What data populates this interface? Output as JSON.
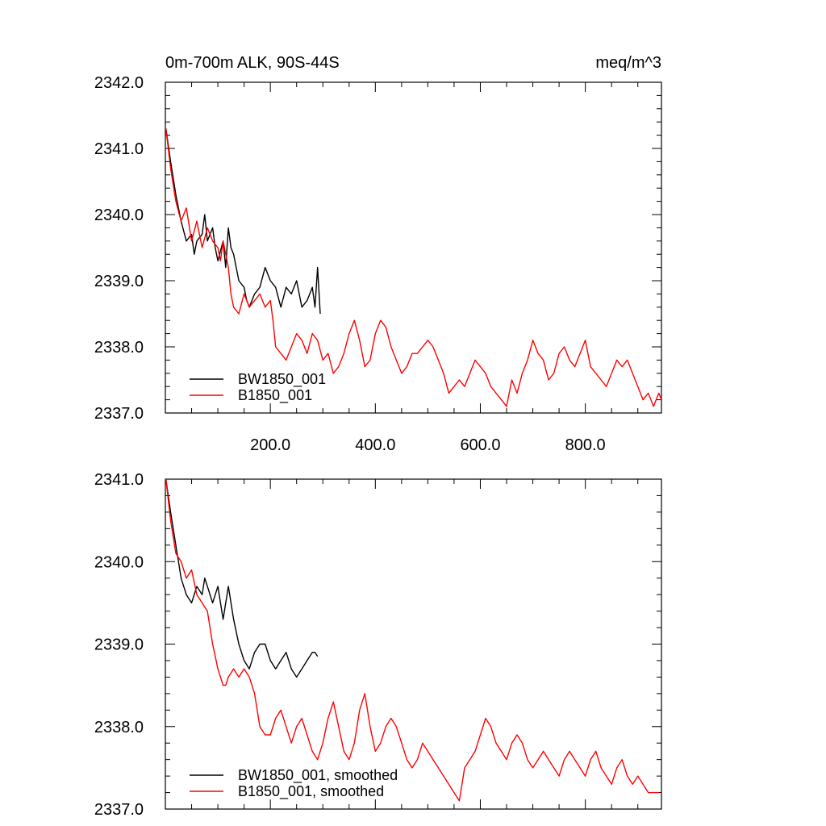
{
  "chart_data": [
    {
      "type": "line",
      "title_left": "0m-700m ALK, 90S-44S",
      "title_right": "meq/m^3",
      "xlabel": "",
      "ylabel": "",
      "xlim": [
        0,
        945
      ],
      "ylim": [
        2337.0,
        2342.0
      ],
      "x_ticks": [
        200,
        400,
        600,
        800
      ],
      "x_tick_labels": [
        "200.0",
        "400.0",
        "600.0",
        "800.0"
      ],
      "y_ticks": [
        2337,
        2338,
        2339,
        2340,
        2341,
        2342
      ],
      "y_tick_labels": [
        "2337.0",
        "2338.0",
        "2339.0",
        "2340.0",
        "2341.0",
        "2342.0"
      ],
      "legend_position": "bottom-left",
      "series": [
        {
          "name": "BW1850_001",
          "color": "#000000",
          "x": [
            1,
            10,
            20,
            30,
            40,
            50,
            55,
            60,
            70,
            75,
            80,
            90,
            95,
            100,
            110,
            115,
            120,
            125,
            130,
            140,
            150,
            155,
            160,
            170,
            180,
            190,
            200,
            210,
            220,
            230,
            240,
            250,
            260,
            270,
            280,
            285,
            290,
            295
          ],
          "y": [
            2341.3,
            2340.8,
            2340.3,
            2339.9,
            2339.6,
            2339.7,
            2339.4,
            2339.6,
            2339.7,
            2340.0,
            2339.6,
            2339.8,
            2339.5,
            2339.3,
            2339.6,
            2339.2,
            2339.8,
            2339.5,
            2339.4,
            2339.0,
            2338.9,
            2338.7,
            2338.6,
            2338.8,
            2338.9,
            2339.2,
            2339.0,
            2338.9,
            2338.6,
            2338.9,
            2338.8,
            2339.0,
            2338.6,
            2338.7,
            2338.9,
            2338.6,
            2339.2,
            2338.5
          ]
        },
        {
          "name": "B1850_001",
          "color": "#ff0000",
          "x": [
            1,
            10,
            20,
            30,
            40,
            50,
            60,
            70,
            80,
            90,
            100,
            105,
            110,
            120,
            125,
            130,
            140,
            150,
            160,
            170,
            180,
            190,
            200,
            205,
            210,
            220,
            230,
            240,
            250,
            260,
            270,
            280,
            290,
            300,
            310,
            320,
            330,
            340,
            350,
            360,
            370,
            380,
            390,
            400,
            410,
            420,
            430,
            440,
            450,
            460,
            470,
            480,
            490,
            500,
            510,
            520,
            530,
            540,
            550,
            560,
            570,
            580,
            590,
            600,
            610,
            620,
            630,
            640,
            650,
            660,
            670,
            680,
            690,
            700,
            710,
            720,
            730,
            740,
            750,
            760,
            770,
            780,
            790,
            800,
            810,
            820,
            830,
            840,
            850,
            860,
            870,
            880,
            890,
            900,
            910,
            920,
            930,
            940,
            945
          ],
          "y": [
            2341.3,
            2340.7,
            2340.2,
            2339.9,
            2340.1,
            2339.6,
            2339.9,
            2339.5,
            2339.8,
            2339.6,
            2339.5,
            2339.3,
            2339.6,
            2339.2,
            2338.8,
            2338.6,
            2338.5,
            2338.8,
            2338.6,
            2338.7,
            2338.8,
            2338.6,
            2338.7,
            2338.4,
            2338.0,
            2337.9,
            2337.8,
            2338.0,
            2338.2,
            2338.1,
            2337.9,
            2338.2,
            2338.1,
            2337.8,
            2337.9,
            2337.6,
            2337.7,
            2337.9,
            2338.2,
            2338.4,
            2338.1,
            2337.7,
            2337.8,
            2338.2,
            2338.4,
            2338.3,
            2338.0,
            2337.8,
            2337.6,
            2337.7,
            2337.9,
            2337.9,
            2338.0,
            2338.1,
            2338.0,
            2337.8,
            2337.6,
            2337.3,
            2337.4,
            2337.5,
            2337.4,
            2337.6,
            2337.8,
            2337.7,
            2337.6,
            2337.4,
            2337.3,
            2337.2,
            2337.1,
            2337.5,
            2337.3,
            2337.6,
            2337.8,
            2338.1,
            2337.9,
            2337.8,
            2337.5,
            2337.6,
            2337.9,
            2338.0,
            2337.8,
            2337.7,
            2337.9,
            2338.1,
            2337.7,
            2337.6,
            2337.5,
            2337.4,
            2337.6,
            2337.8,
            2337.7,
            2337.8,
            2337.6,
            2337.4,
            2337.2,
            2337.3,
            2337.1,
            2337.3,
            2337.2
          ]
        }
      ]
    },
    {
      "type": "line",
      "title_left": "",
      "title_right": "",
      "xlabel": "",
      "ylabel": "",
      "xlim": [
        0,
        945
      ],
      "ylim": [
        2337.0,
        2341.0
      ],
      "x_ticks": [
        200,
        400,
        600,
        800
      ],
      "x_tick_labels": [],
      "y_ticks": [
        2337,
        2338,
        2339,
        2340,
        2341
      ],
      "y_tick_labels": [
        "2337.0",
        "2338.0",
        "2339.0",
        "2340.0",
        "2341.0"
      ],
      "legend_position": "bottom-left",
      "series": [
        {
          "name": "BW1850_001, smoothed",
          "color": "#000000",
          "x": [
            1,
            10,
            20,
            30,
            40,
            50,
            60,
            70,
            75,
            80,
            90,
            100,
            110,
            120,
            130,
            140,
            150,
            160,
            170,
            180,
            190,
            200,
            210,
            220,
            230,
            240,
            250,
            260,
            270,
            280,
            285,
            290
          ],
          "y": [
            2341.0,
            2340.6,
            2340.2,
            2339.8,
            2339.6,
            2339.5,
            2339.7,
            2339.6,
            2339.8,
            2339.7,
            2339.5,
            2339.7,
            2339.3,
            2339.7,
            2339.3,
            2339.0,
            2338.8,
            2338.7,
            2338.9,
            2339.0,
            2339.0,
            2338.8,
            2338.7,
            2338.8,
            2338.9,
            2338.7,
            2338.6,
            2338.7,
            2338.8,
            2338.9,
            2338.9,
            2338.85
          ]
        },
        {
          "name": "B1850_001, smoothed",
          "color": "#ff0000",
          "x": [
            1,
            10,
            20,
            30,
            40,
            50,
            60,
            70,
            80,
            90,
            100,
            110,
            115,
            120,
            130,
            140,
            150,
            160,
            170,
            180,
            190,
            200,
            210,
            220,
            230,
            240,
            250,
            260,
            270,
            280,
            290,
            300,
            310,
            320,
            330,
            340,
            350,
            360,
            370,
            380,
            390,
            400,
            410,
            420,
            430,
            440,
            450,
            460,
            470,
            480,
            490,
            500,
            510,
            520,
            530,
            540,
            550,
            560,
            570,
            580,
            590,
            600,
            610,
            620,
            630,
            640,
            650,
            660,
            670,
            680,
            690,
            700,
            710,
            720,
            730,
            740,
            750,
            760,
            770,
            780,
            790,
            800,
            810,
            820,
            830,
            840,
            850,
            860,
            870,
            880,
            890,
            900,
            910,
            920,
            930,
            940
          ],
          "y": [
            2341.0,
            2340.5,
            2340.1,
            2340.0,
            2339.8,
            2339.9,
            2339.6,
            2339.5,
            2339.4,
            2339.0,
            2338.7,
            2338.5,
            2338.5,
            2338.6,
            2338.7,
            2338.6,
            2338.7,
            2338.6,
            2338.4,
            2338.0,
            2337.9,
            2337.9,
            2338.1,
            2338.2,
            2338.0,
            2337.8,
            2338.0,
            2338.1,
            2337.9,
            2337.7,
            2337.6,
            2337.8,
            2338.1,
            2338.3,
            2338.0,
            2337.7,
            2337.6,
            2337.8,
            2338.2,
            2338.4,
            2338.0,
            2337.7,
            2337.8,
            2338.0,
            2338.1,
            2338.0,
            2337.8,
            2337.6,
            2337.5,
            2337.6,
            2337.8,
            2337.7,
            2337.6,
            2337.5,
            2337.4,
            2337.3,
            2337.2,
            2337.1,
            2337.5,
            2337.6,
            2337.7,
            2337.9,
            2338.1,
            2338.0,
            2337.8,
            2337.7,
            2337.6,
            2337.8,
            2337.9,
            2337.8,
            2337.6,
            2337.5,
            2337.6,
            2337.7,
            2337.6,
            2337.5,
            2337.4,
            2337.6,
            2337.7,
            2337.6,
            2337.5,
            2337.4,
            2337.6,
            2337.7,
            2337.5,
            2337.4,
            2337.3,
            2337.5,
            2337.6,
            2337.4,
            2337.3,
            2337.4,
            2337.3,
            2337.2,
            2337.2,
            2337.2
          ]
        }
      ]
    }
  ]
}
